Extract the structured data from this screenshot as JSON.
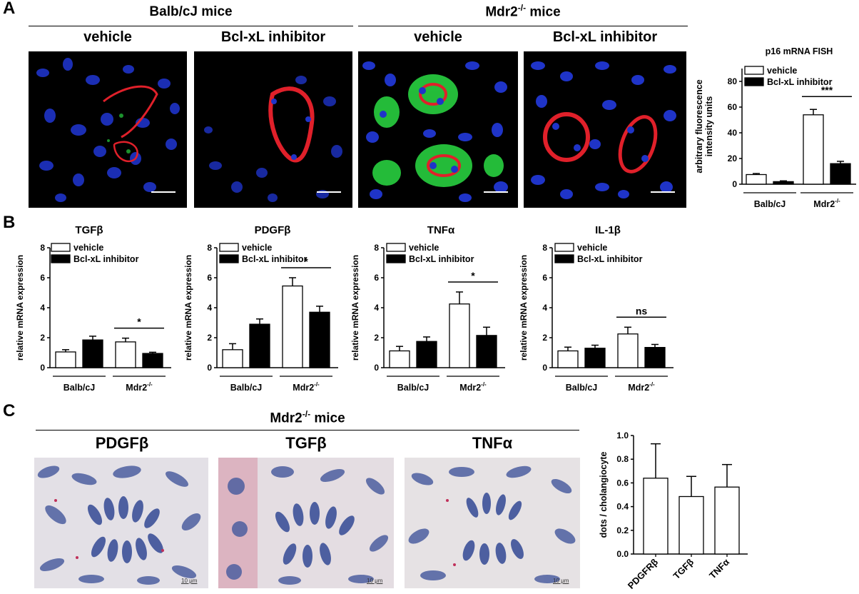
{
  "panelA": {
    "letter": "A",
    "groups": [
      {
        "title_main": "Balb/cJ mice",
        "title_sup": ""
      },
      {
        "title_main": "Mdr2",
        "title_sup": "-/-",
        "title_tail": " mice"
      }
    ],
    "images": [
      {
        "label": "vehicle"
      },
      {
        "label": "Bcl-xL inhibitor"
      },
      {
        "label": "vehicle"
      },
      {
        "label": "Bcl-xL inhibitor"
      }
    ]
  },
  "panelB": {
    "letter": "B"
  },
  "panelC": {
    "letter": "C",
    "group_main": "Mdr2",
    "group_sup": "-/-",
    "group_tail": " mice",
    "images": [
      {
        "label": "PDGFβ",
        "scale": "10 μm"
      },
      {
        "label": "TGFβ",
        "scale": "10 μm"
      },
      {
        "label": "TNFα",
        "scale": "10 μm"
      }
    ]
  },
  "colors": {
    "dapi": "#1f34c8",
    "ck19": "#e0202a",
    "p16": "#28d040",
    "he_nuclei": "#4d5fa0",
    "he_bg": "#e6e2e4"
  },
  "chart_data": [
    {
      "id": "p16",
      "type": "bar",
      "title": "p16 mRNA FISH",
      "ylabel": "arbitrary fluorescence intensity units",
      "ylim": [
        0,
        90
      ],
      "yticks": [
        0,
        20,
        40,
        60,
        80
      ],
      "groups": [
        {
          "main": "Balb/cJ",
          "sup": ""
        },
        {
          "main": "Mdr2",
          "sup": "-/-"
        }
      ],
      "legend": "top-right",
      "series": [
        {
          "name": "vehicle",
          "fill": "#ffffff",
          "values": [
            7.5,
            54
          ],
          "errors": [
            0.8,
            4.2
          ]
        },
        {
          "name": "Bcl-xL inhibitor",
          "fill": "#000000",
          "values": [
            2,
            16
          ],
          "errors": [
            0.6,
            1.8
          ]
        }
      ],
      "significance": [
        {
          "group": 1,
          "label": "***"
        }
      ]
    },
    {
      "id": "tgfb",
      "type": "bar",
      "title": "TGFβ",
      "ylabel": "relative mRNA expression",
      "ylim": [
        0,
        8
      ],
      "yticks": [
        0,
        2,
        4,
        6,
        8
      ],
      "groups": [
        {
          "main": "Balb/cJ",
          "sup": ""
        },
        {
          "main": "Mdr2",
          "sup": "-/-"
        }
      ],
      "legend": "top",
      "series": [
        {
          "name": "vehicle",
          "fill": "#ffffff",
          "values": [
            1.05,
            1.72
          ],
          "errors": [
            0.15,
            0.25
          ]
        },
        {
          "name": "Bcl-xL inhibitor",
          "fill": "#000000",
          "values": [
            1.85,
            0.95
          ],
          "errors": [
            0.25,
            0.08
          ]
        }
      ],
      "significance": [
        {
          "group": 1,
          "label": "*"
        }
      ]
    },
    {
      "id": "pdgfb",
      "type": "bar",
      "title": "PDGFβ",
      "ylabel": "relative mRNA expression",
      "ylim": [
        0,
        8
      ],
      "yticks": [
        0,
        2,
        4,
        6,
        8
      ],
      "groups": [
        {
          "main": "Balb/cJ",
          "sup": ""
        },
        {
          "main": "Mdr2",
          "sup": "-/-"
        }
      ],
      "legend": "top",
      "series": [
        {
          "name": "vehicle",
          "fill": "#ffffff",
          "values": [
            1.2,
            5.45
          ],
          "errors": [
            0.4,
            0.55
          ]
        },
        {
          "name": "Bcl-xL inhibitor",
          "fill": "#000000",
          "values": [
            2.9,
            3.7
          ],
          "errors": [
            0.35,
            0.4
          ]
        }
      ],
      "significance": [
        {
          "group": 1,
          "label": "*"
        }
      ]
    },
    {
      "id": "tnfa",
      "type": "bar",
      "title": "TNFα",
      "ylabel": "relative mRNA expression",
      "ylim": [
        0,
        8
      ],
      "yticks": [
        0,
        2,
        4,
        6,
        8
      ],
      "groups": [
        {
          "main": "Balb/cJ",
          "sup": ""
        },
        {
          "main": "Mdr2",
          "sup": "-/-"
        }
      ],
      "legend": "top",
      "series": [
        {
          "name": "vehicle",
          "fill": "#ffffff",
          "values": [
            1.12,
            4.25
          ],
          "errors": [
            0.3,
            0.8
          ]
        },
        {
          "name": "Bcl-xL inhibitor",
          "fill": "#000000",
          "values": [
            1.75,
            2.15
          ],
          "errors": [
            0.3,
            0.55
          ]
        }
      ],
      "significance": [
        {
          "group": 1,
          "label": "*"
        }
      ]
    },
    {
      "id": "il1b",
      "type": "bar",
      "title": "IL-1β",
      "ylabel": "relative mRNA expression",
      "ylim": [
        0,
        8
      ],
      "yticks": [
        0,
        2,
        4,
        6,
        8
      ],
      "groups": [
        {
          "main": "Balb/cJ",
          "sup": ""
        },
        {
          "main": "Mdr2",
          "sup": "-/-"
        }
      ],
      "legend": "top",
      "series": [
        {
          "name": "vehicle",
          "fill": "#ffffff",
          "values": [
            1.12,
            2.25
          ],
          "errors": [
            0.25,
            0.45
          ]
        },
        {
          "name": "Bcl-xL inhibitor",
          "fill": "#000000",
          "values": [
            1.3,
            1.35
          ],
          "errors": [
            0.2,
            0.2
          ]
        }
      ],
      "significance": [
        {
          "group": 1,
          "label": "ns"
        }
      ]
    },
    {
      "id": "dots",
      "type": "bar",
      "title": "",
      "ylabel": "dots / cholangiocyte",
      "ylim": [
        0,
        1.0
      ],
      "yticks": [
        0.0,
        0.2,
        0.4,
        0.6,
        0.8,
        1.0
      ],
      "categories": [
        "PDGFRβ",
        "TGFβ",
        "TNFα"
      ],
      "values": [
        0.64,
        0.485,
        0.565
      ],
      "errors": [
        0.29,
        0.17,
        0.19
      ]
    }
  ]
}
